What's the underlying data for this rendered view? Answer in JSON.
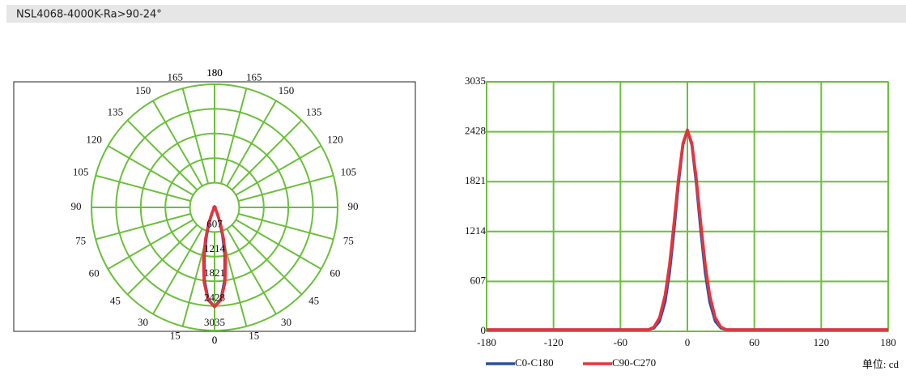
{
  "header": {
    "title": "NSL4068-4000K-Ra>90-24°"
  },
  "chart_data": [
    {
      "type": "polar",
      "rlim": [
        0,
        3035
      ],
      "rticks": [
        607,
        1214,
        1821,
        2428,
        3035
      ],
      "angle_ticks": [
        0,
        15,
        30,
        45,
        60,
        75,
        90,
        105,
        120,
        135,
        150,
        165,
        180
      ],
      "grid": true,
      "grid_color": "#6cbf3c",
      "x": [
        -180,
        -90,
        -60,
        -45,
        -40,
        -35,
        -30,
        -25,
        -20,
        -16,
        -12,
        -8,
        -4,
        0,
        4,
        8,
        12,
        16,
        20,
        25,
        30,
        35,
        40,
        45,
        60,
        90,
        180
      ],
      "series": [
        {
          "name": "C0-C180",
          "color": "#2d4f9e",
          "values": [
            20,
            20,
            20,
            20,
            20,
            20,
            40,
            122,
            358,
            715,
            1226,
            1801,
            2268,
            2450,
            2268,
            1801,
            1226,
            715,
            358,
            122,
            40,
            20,
            20,
            20,
            20,
            20,
            20
          ]
        },
        {
          "name": "C90-C270",
          "color": "#e8333a",
          "values": [
            20,
            20,
            20,
            20,
            20,
            20,
            52,
            167,
            441,
            816,
            1320,
            1862,
            2288,
            2450,
            2288,
            1862,
            1320,
            816,
            441,
            167,
            52,
            20,
            20,
            20,
            20,
            20,
            20
          ]
        }
      ]
    },
    {
      "type": "line",
      "xlim": [
        -180,
        180
      ],
      "xticks": [
        -180,
        -120,
        -60,
        0,
        60,
        120,
        180
      ],
      "ylim": [
        0,
        3035
      ],
      "yticks": [
        0,
        607,
        1214,
        1821,
        2428,
        3035
      ],
      "grid": true,
      "grid_color": "#6cbf3c",
      "unit_label": "单位: cd",
      "x": [
        -180,
        -90,
        -60,
        -45,
        -40,
        -35,
        -30,
        -25,
        -20,
        -16,
        -12,
        -8,
        -4,
        0,
        4,
        8,
        12,
        16,
        20,
        25,
        30,
        35,
        40,
        45,
        60,
        90,
        180
      ],
      "series": [
        {
          "name": "C0-C180",
          "color": "#2d4f9e",
          "values": [
            20,
            20,
            20,
            20,
            20,
            20,
            40,
            122,
            358,
            715,
            1226,
            1801,
            2268,
            2450,
            2268,
            1801,
            1226,
            715,
            358,
            122,
            40,
            20,
            20,
            20,
            20,
            20,
            20
          ]
        },
        {
          "name": "C90-C270",
          "color": "#e8333a",
          "values": [
            20,
            20,
            20,
            20,
            20,
            20,
            52,
            167,
            441,
            816,
            1320,
            1862,
            2288,
            2450,
            2288,
            1862,
            1320,
            816,
            441,
            167,
            52,
            20,
            20,
            20,
            20,
            20,
            20
          ]
        }
      ]
    }
  ]
}
